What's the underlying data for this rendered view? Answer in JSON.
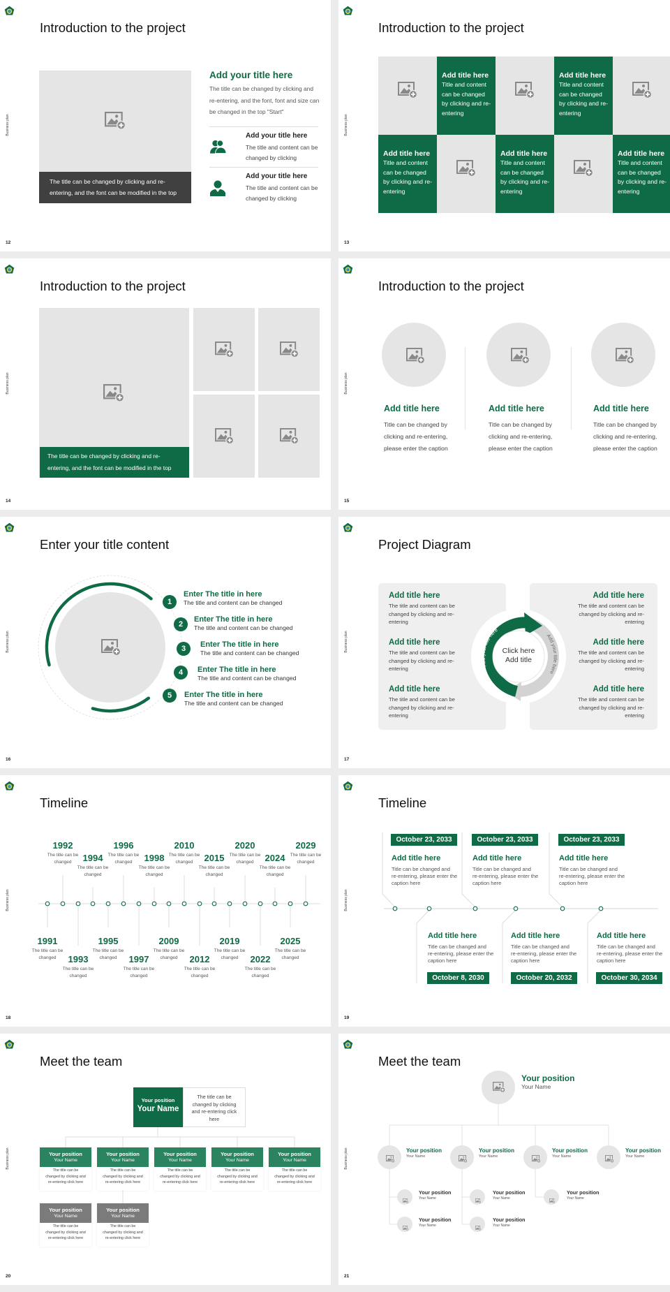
{
  "common": {
    "side_label": "Business plan"
  },
  "colors": {
    "accent": "#0e6b45",
    "placeholder": "#e6e5e5",
    "caption_dark": "#404040",
    "member_gray": "#7b7b7b",
    "member_green": "#2a8460"
  },
  "s12": {
    "page": "12",
    "title": "Introduction to the project",
    "caption": "The title can be changed by clicking and re-entering, and the font can be modified in the top",
    "heading": "Add your title here",
    "body": "The title can be changed by clicking and re-entering, and the font, font and size can be changed in the top \"Start\"",
    "items": [
      {
        "icon": "users-icon",
        "title": "Add your title here",
        "body": "The title and content can be changed by clicking"
      },
      {
        "icon": "user-icon",
        "title": "Add your title here",
        "body": "The title and content can be changed by clicking"
      }
    ]
  },
  "s13": {
    "page": "13",
    "title": "Introduction to the project",
    "cells": [
      {
        "type": "image"
      },
      {
        "type": "text",
        "title": "Add title here",
        "body": "Title and content can be changed by clicking and re-entering"
      },
      {
        "type": "image"
      },
      {
        "type": "text",
        "title": "Add title here",
        "body": "Title and content can be changed by clicking and re-entering"
      },
      {
        "type": "image"
      },
      {
        "type": "text",
        "title": "Add title here",
        "body": "Title and content can be changed by clicking and re-entering"
      },
      {
        "type": "image"
      },
      {
        "type": "text",
        "title": "Add title here",
        "body": "Title and content can be changed by clicking and re-entering"
      },
      {
        "type": "image"
      },
      {
        "type": "text",
        "title": "Add title here",
        "body": "Title and content can be changed by clicking and re-entering"
      }
    ]
  },
  "s14": {
    "page": "14",
    "title": "Introduction to the project",
    "caption": "The title can be changed by clicking and re-entering, and the font can be modified in the top"
  },
  "s15": {
    "page": "15",
    "title": "Introduction to the project",
    "cols": [
      {
        "title": "Add title here",
        "body": "Title can be changed by clicking and re-entering, please enter the caption"
      },
      {
        "title": "Add title here",
        "body": "Title can be changed by clicking and re-entering, please enter the caption"
      },
      {
        "title": "Add title here",
        "body": "Title can be changed by clicking and re-entering, please enter the caption"
      }
    ]
  },
  "s16": {
    "page": "16",
    "title": "Enter your title content",
    "items": [
      {
        "num": "1",
        "title": "Enter The title in here",
        "body": "The title and content can be changed"
      },
      {
        "num": "2",
        "title": "Enter The title in here",
        "body": "The title and content can be changed"
      },
      {
        "num": "3",
        "title": "Enter The title in here",
        "body": "The title and content can be changed"
      },
      {
        "num": "4",
        "title": "Enter The title in here",
        "body": "The title and content can be changed"
      },
      {
        "num": "5",
        "title": "Enter The title in here",
        "body": "The title and content can be changed"
      }
    ]
  },
  "s17": {
    "page": "17",
    "title": "Project Diagram",
    "center": [
      "Click here",
      "Add title"
    ],
    "arrow_left": "Add your title here",
    "arrow_right": "Add your title here",
    "left": [
      {
        "title": "Add title here",
        "body": "The title and content can be changed by clicking and re-entering"
      },
      {
        "title": "Add title here",
        "body": "The title and content can be changed by clicking and re-entering"
      },
      {
        "title": "Add title here",
        "body": "The title and content can be changed by clicking and re-entering"
      }
    ],
    "right": [
      {
        "title": "Add title here",
        "body": "The title and content can be changed by clicking and re-entering"
      },
      {
        "title": "Add title here",
        "body": "The title and content can be changed by clicking and re-entering"
      },
      {
        "title": "Add title here",
        "body": "The title and content can be changed by clicking and re-entering"
      }
    ]
  },
  "s18": {
    "page": "18",
    "title": "Timeline",
    "events": [
      {
        "year": "1991",
        "text": "The title can be changed",
        "side": "bottom"
      },
      {
        "year": "1992",
        "text": "The title can be changed",
        "side": "top"
      },
      {
        "year": "1993",
        "text": "The title can be changed",
        "side": "bottom"
      },
      {
        "year": "1994",
        "text": "The title can be changed",
        "side": "top"
      },
      {
        "year": "1995",
        "text": "The title can be changed",
        "side": "bottom"
      },
      {
        "year": "1996",
        "text": "The title can be changed",
        "side": "top"
      },
      {
        "year": "1997",
        "text": "The title can be changed",
        "side": "bottom"
      },
      {
        "year": "1998",
        "text": "The title can be changed",
        "side": "top"
      },
      {
        "year": "2009",
        "text": "The title can be changed",
        "side": "bottom"
      },
      {
        "year": "2010",
        "text": "The title can be changed",
        "side": "top"
      },
      {
        "year": "2012",
        "text": "The title can be changed",
        "side": "bottom"
      },
      {
        "year": "2015",
        "text": "The title can be changed",
        "side": "top"
      },
      {
        "year": "2019",
        "text": "The title can be changed",
        "side": "bottom"
      },
      {
        "year": "2020",
        "text": "The title can be changed",
        "side": "top"
      },
      {
        "year": "2022",
        "text": "The title can be changed",
        "side": "bottom"
      },
      {
        "year": "2024",
        "text": "The title can be changed",
        "side": "top"
      },
      {
        "year": "2025",
        "text": "The title can be changed",
        "side": "bottom"
      },
      {
        "year": "2029",
        "text": "The title can be changed",
        "side": "top"
      }
    ]
  },
  "s19": {
    "page": "19",
    "title": "Timeline",
    "top": [
      {
        "date": "October 23, 2033",
        "title": "Add title here",
        "body": "Title can be changed and re-entering, please enter the caption here"
      },
      {
        "date": "October 23, 2033",
        "title": "Add title here",
        "body": "Title can be changed and re-entering, please enter the caption here"
      },
      {
        "date": "October 23, 2033",
        "title": "Add title here",
        "body": "Title can be changed and re-entering, please enter the caption here"
      }
    ],
    "bottom": [
      {
        "date": "October 8, 2030",
        "title": "Add title here",
        "body": "Title can be changed and re-entering, please enter the caption here"
      },
      {
        "date": "October 20, 2032",
        "title": "Add title here",
        "body": "Title can be changed and re-entering, please enter the caption here"
      },
      {
        "date": "October 30, 2034",
        "title": "Add title here",
        "body": "Title can be changed and re-entering, please enter the caption here"
      }
    ]
  },
  "s20": {
    "page": "20",
    "title": "Meet the team",
    "head": {
      "position": "Your position",
      "name": "Your Name",
      "desc": "The title can be changed by clicking and re-entering click here"
    },
    "members": [
      {
        "position": "Your position",
        "name": "Your Name",
        "desc": "The title can be changed by clicking and re-entering click here",
        "tone": "green"
      },
      {
        "position": "Your position",
        "name": "Your Name",
        "desc": "The title can be changed by clicking and re-entering click here",
        "tone": "green"
      },
      {
        "position": "Your position",
        "name": "Your Name",
        "desc": "The title can be changed by clicking and re-entering click here",
        "tone": "green"
      },
      {
        "position": "Your position",
        "name": "Your Name",
        "desc": "The title can be changed by clicking and re-entering click here",
        "tone": "green"
      },
      {
        "position": "Your position",
        "name": "Your Name",
        "desc": "The title can be changed by clicking and re-entering click here",
        "tone": "green"
      },
      {
        "position": "Your position",
        "name": "Your Name",
        "desc": "The title can be changed by clicking and re-entering click here",
        "tone": "gray"
      },
      {
        "position": "Your position",
        "name": "Your Name",
        "desc": "The title can be changed by clicking and re-entering click here",
        "tone": "gray"
      }
    ]
  },
  "s21": {
    "page": "21",
    "title": "Meet the team",
    "head": {
      "position": "Your position",
      "name": "Your Name"
    },
    "level2": [
      {
        "position": "Your position",
        "name": "Your Name"
      },
      {
        "position": "Your position",
        "name": "Your Name"
      },
      {
        "position": "Your position",
        "name": "Your Name"
      },
      {
        "position": "Your position",
        "name": "Your Name"
      }
    ],
    "level3": [
      {
        "position": "Your position",
        "name": "Your Name"
      },
      {
        "position": "Your position",
        "name": "Your Name"
      },
      {
        "position": "Your position",
        "name": "Your Name"
      },
      {
        "position": "Your position",
        "name": "Your Name"
      },
      {
        "position": "Your position",
        "name": "Your Name"
      }
    ]
  }
}
